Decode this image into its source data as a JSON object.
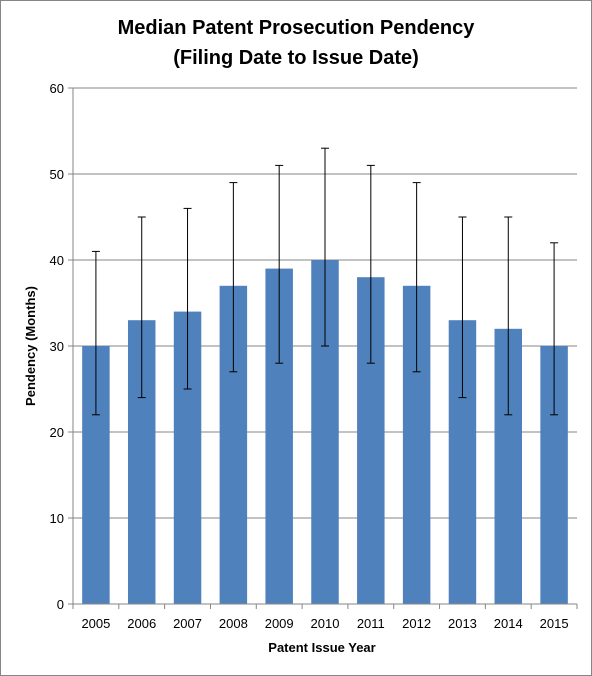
{
  "chart_data": {
    "type": "bar",
    "title": [
      "Median Patent Prosecution Pendency",
      "(Filing Date to Issue Date)"
    ],
    "xlabel": "Patent Issue Year",
    "ylabel": "Pendency (Months)",
    "ylim": [
      0,
      60
    ],
    "yticks": [
      0,
      10,
      20,
      30,
      40,
      50,
      60
    ],
    "grid": true,
    "legend": "none",
    "categories": [
      "2005",
      "2006",
      "2007",
      "2008",
      "2009",
      "2010",
      "2011",
      "2012",
      "2013",
      "2014",
      "2015"
    ],
    "values": [
      30,
      33,
      34,
      37,
      39,
      40,
      38,
      37,
      33,
      32,
      30
    ],
    "error_low": [
      22,
      24,
      25,
      27,
      28,
      30,
      28,
      27,
      24,
      22,
      22
    ],
    "error_high": [
      41,
      45,
      46,
      49,
      51,
      53,
      51,
      49,
      45,
      45,
      42
    ],
    "bar_color": "#4F81BD",
    "grid_color": "#868686"
  }
}
